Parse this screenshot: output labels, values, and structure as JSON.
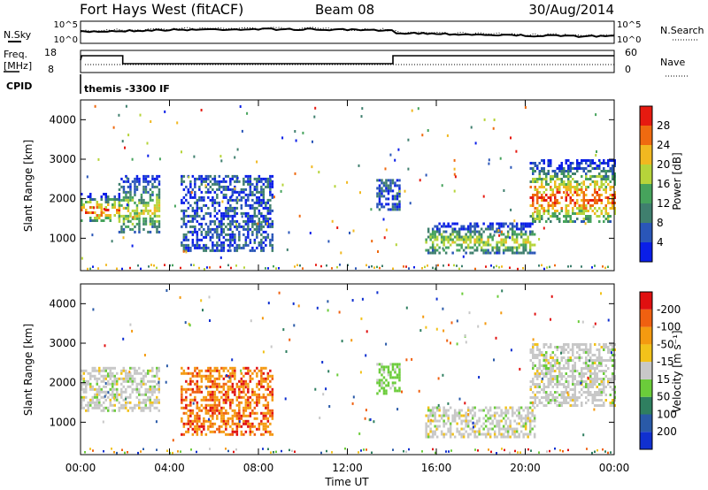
{
  "header": {
    "title": "Fort Hays West (fitACF)",
    "beam": "Beam 08",
    "date": "30/Aug/2014"
  },
  "sky_panel": {
    "left_label": "N.Sky",
    "left_ticks": [
      "10^5",
      "10^0"
    ],
    "right_ticks": [
      "10^5",
      "10^0"
    ],
    "right_label": "N.Search"
  },
  "freq_panel": {
    "left_label_line1": "Freq.",
    "left_label_line2": "[MHz]",
    "left_ticks": [
      "18",
      "8"
    ],
    "right_ticks": [
      "60",
      "0"
    ],
    "right_label": "Nave"
  },
  "cpid": {
    "label": "CPID",
    "value": "themis -3300 IF"
  },
  "time_axis": {
    "label": "Time UT",
    "ticks": [
      "00:00",
      "04:00",
      "08:00",
      "12:00",
      "16:00",
      "20:00",
      "00:00"
    ]
  },
  "chart_data": [
    {
      "type": "heatmap",
      "panel": "power",
      "ylabel": "Slant Range [km]",
      "ylim": [
        180,
        4500
      ],
      "xlim_hours": [
        0,
        24
      ],
      "yticks": [
        "1000",
        "2000",
        "3000",
        "4000"
      ],
      "colorbar": {
        "label": "Power [dB]",
        "ticks": [
          "4",
          "8",
          "12",
          "16",
          "20",
          "24",
          "28"
        ],
        "colors": [
          "#0a1ee8",
          "#2a56b8",
          "#3f7f6e",
          "#46a35c",
          "#b6d43a",
          "#f1b820",
          "#ef6a10",
          "#e61a10"
        ]
      },
      "regions": [
        {
          "t": [
            0.0,
            1.7
          ],
          "r": [
            1450,
            2150
          ],
          "level": "high"
        },
        {
          "t": [
            1.7,
            3.5
          ],
          "r": [
            1150,
            2600
          ],
          "level": "mid"
        },
        {
          "t": [
            4.5,
            8.6
          ],
          "r": [
            700,
            2600
          ],
          "level": "low"
        },
        {
          "t": [
            13.3,
            14.3
          ],
          "r": [
            1700,
            2500
          ],
          "level": "low"
        },
        {
          "t": [
            15.5,
            20.4
          ],
          "r": [
            650,
            1400
          ],
          "level": "mid"
        },
        {
          "t": [
            20.2,
            24.0
          ],
          "r": [
            1400,
            3000
          ],
          "level": "high"
        }
      ]
    },
    {
      "type": "heatmap",
      "panel": "velocity",
      "ylabel": "Slant Range [km]",
      "ylim": [
        180,
        4500
      ],
      "xlim_hours": [
        0,
        24
      ],
      "yticks": [
        "1000",
        "2000",
        "3000",
        "4000"
      ],
      "colorbar": {
        "label": "Velocity [m s⁻¹]",
        "ticks": [
          "200",
          "100",
          "50",
          "15",
          "-15",
          "-50",
          "-100",
          "-200"
        ],
        "colors": [
          "#1030d0",
          "#2a5aa8",
          "#2f7f60",
          "#6bcc3a",
          "#c8c8c8",
          "#f2c21a",
          "#f49a10",
          "#f06010",
          "#e01010"
        ]
      },
      "regions": [
        {
          "t": [
            0.0,
            3.5
          ],
          "r": [
            1300,
            2400
          ],
          "level": "zero"
        },
        {
          "t": [
            4.5,
            8.6
          ],
          "r": [
            700,
            2400
          ],
          "level": "away"
        },
        {
          "t": [
            13.3,
            14.3
          ],
          "r": [
            1700,
            2500
          ],
          "level": "toward"
        },
        {
          "t": [
            15.5,
            20.4
          ],
          "r": [
            650,
            1400
          ],
          "level": "zero"
        },
        {
          "t": [
            20.2,
            24.0
          ],
          "r": [
            1400,
            3000
          ],
          "level": "zero"
        }
      ]
    }
  ]
}
